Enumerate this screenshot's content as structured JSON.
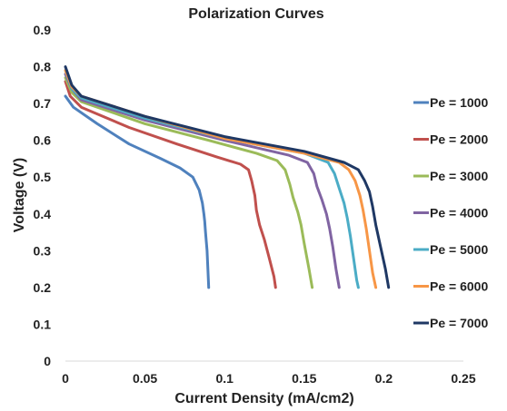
{
  "chart_data": {
    "type": "line",
    "title": "Polarization Curves",
    "xlabel": "Current Density (mA/cm2)",
    "ylabel": "Voltage (V)",
    "xlim": [
      0,
      0.25
    ],
    "ylim": [
      0,
      0.9
    ],
    "x_ticks": [
      "0",
      "0.05",
      "0.1",
      "0.15",
      "0.2",
      "0.25"
    ],
    "y_ticks": [
      "0",
      "0.1",
      "0.2",
      "0.3",
      "0.4",
      "0.5",
      "0.6",
      "0.7",
      "0.8",
      "0.9"
    ],
    "grid": false,
    "legend_position": "right",
    "series": [
      {
        "name": "Pe = 1000",
        "color": "#4f81bd",
        "points": [
          [
            0,
            0.72
          ],
          [
            0.005,
            0.69
          ],
          [
            0.02,
            0.645
          ],
          [
            0.04,
            0.59
          ],
          [
            0.06,
            0.55
          ],
          [
            0.072,
            0.525
          ],
          [
            0.08,
            0.5
          ],
          [
            0.084,
            0.465
          ],
          [
            0.086,
            0.43
          ],
          [
            0.087,
            0.4
          ],
          [
            0.0875,
            0.38
          ],
          [
            0.088,
            0.35
          ],
          [
            0.089,
            0.3
          ],
          [
            0.0895,
            0.25
          ],
          [
            0.09,
            0.2
          ]
        ]
      },
      {
        "name": "Pe = 2000",
        "color": "#c0504d",
        "points": [
          [
            0,
            0.76
          ],
          [
            0.003,
            0.72
          ],
          [
            0.01,
            0.69
          ],
          [
            0.04,
            0.635
          ],
          [
            0.07,
            0.59
          ],
          [
            0.095,
            0.555
          ],
          [
            0.11,
            0.535
          ],
          [
            0.115,
            0.52
          ],
          [
            0.117,
            0.49
          ],
          [
            0.119,
            0.45
          ],
          [
            0.12,
            0.41
          ],
          [
            0.122,
            0.37
          ],
          [
            0.125,
            0.33
          ],
          [
            0.128,
            0.28
          ],
          [
            0.131,
            0.23
          ],
          [
            0.132,
            0.2
          ]
        ]
      },
      {
        "name": "Pe = 3000",
        "color": "#9bbb59",
        "points": [
          [
            0,
            0.77
          ],
          [
            0.004,
            0.73
          ],
          [
            0.01,
            0.705
          ],
          [
            0.05,
            0.645
          ],
          [
            0.09,
            0.6
          ],
          [
            0.12,
            0.565
          ],
          [
            0.133,
            0.545
          ],
          [
            0.138,
            0.52
          ],
          [
            0.141,
            0.48
          ],
          [
            0.143,
            0.445
          ],
          [
            0.146,
            0.405
          ],
          [
            0.148,
            0.37
          ],
          [
            0.15,
            0.32
          ],
          [
            0.153,
            0.25
          ],
          [
            0.155,
            0.2
          ]
        ]
      },
      {
        "name": "Pe = 4000",
        "color": "#8064a2",
        "points": [
          [
            0,
            0.78
          ],
          [
            0.004,
            0.74
          ],
          [
            0.01,
            0.71
          ],
          [
            0.05,
            0.655
          ],
          [
            0.1,
            0.6
          ],
          [
            0.14,
            0.56
          ],
          [
            0.152,
            0.54
          ],
          [
            0.156,
            0.51
          ],
          [
            0.158,
            0.475
          ],
          [
            0.161,
            0.44
          ],
          [
            0.164,
            0.4
          ],
          [
            0.166,
            0.36
          ],
          [
            0.168,
            0.31
          ],
          [
            0.17,
            0.25
          ],
          [
            0.172,
            0.2
          ]
        ]
      },
      {
        "name": "Pe = 5000",
        "color": "#4bacc6",
        "points": [
          [
            0,
            0.79
          ],
          [
            0.004,
            0.74
          ],
          [
            0.01,
            0.715
          ],
          [
            0.05,
            0.66
          ],
          [
            0.1,
            0.605
          ],
          [
            0.15,
            0.565
          ],
          [
            0.165,
            0.54
          ],
          [
            0.169,
            0.51
          ],
          [
            0.172,
            0.47
          ],
          [
            0.175,
            0.43
          ],
          [
            0.177,
            0.39
          ],
          [
            0.179,
            0.34
          ],
          [
            0.181,
            0.28
          ],
          [
            0.183,
            0.22
          ],
          [
            0.184,
            0.2
          ]
        ]
      },
      {
        "name": "Pe = 6000",
        "color": "#f79646",
        "points": [
          [
            0,
            0.79
          ],
          [
            0.004,
            0.745
          ],
          [
            0.01,
            0.72
          ],
          [
            0.05,
            0.665
          ],
          [
            0.1,
            0.605
          ],
          [
            0.15,
            0.565
          ],
          [
            0.172,
            0.54
          ],
          [
            0.178,
            0.52
          ],
          [
            0.182,
            0.49
          ],
          [
            0.185,
            0.45
          ],
          [
            0.187,
            0.41
          ],
          [
            0.189,
            0.36
          ],
          [
            0.191,
            0.3
          ],
          [
            0.193,
            0.24
          ],
          [
            0.195,
            0.2
          ]
        ]
      },
      {
        "name": "Pe = 7000",
        "color": "#1f3864",
        "points": [
          [
            0,
            0.8
          ],
          [
            0.004,
            0.75
          ],
          [
            0.01,
            0.72
          ],
          [
            0.05,
            0.665
          ],
          [
            0.1,
            0.61
          ],
          [
            0.15,
            0.57
          ],
          [
            0.175,
            0.54
          ],
          [
            0.184,
            0.52
          ],
          [
            0.188,
            0.49
          ],
          [
            0.191,
            0.46
          ],
          [
            0.193,
            0.42
          ],
          [
            0.195,
            0.37
          ],
          [
            0.198,
            0.31
          ],
          [
            0.201,
            0.25
          ],
          [
            0.203,
            0.2
          ]
        ]
      }
    ]
  }
}
